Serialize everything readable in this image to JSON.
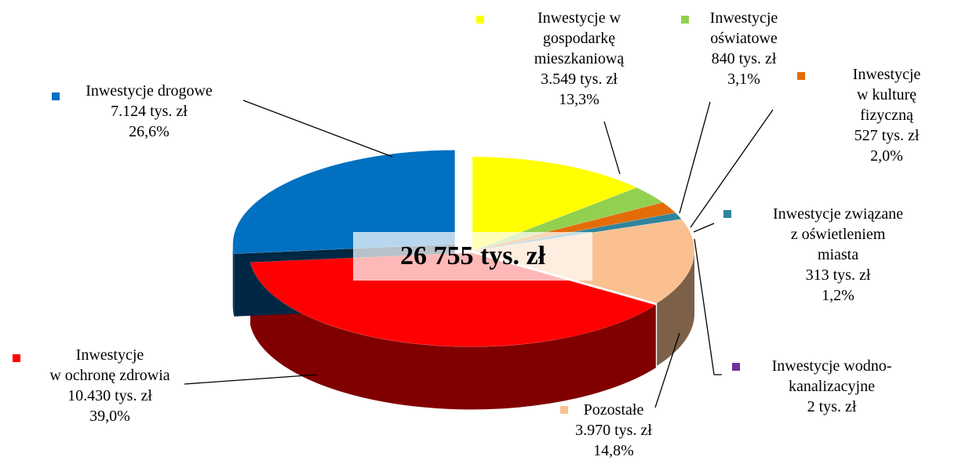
{
  "chart_data": {
    "type": "pie3d",
    "center_label": "26 755  tys. zł",
    "categories": [
      "Inwestycje w\ngospodarkę\nmieszkaniową",
      "Inwestycje\noświatowe",
      "Inwestycje\nw kulturę fizyczną",
      "Inwestycje związane\nz oświetleniem miasta",
      "Inwestycje wodno-\nkanalizacyjne",
      "Pozostałe",
      "Inwestycje\nw ochronę zdrowia",
      "Inwestycje drogowe"
    ],
    "values": [
      3549,
      840,
      527,
      313,
      2,
      3970,
      10430,
      7124
    ],
    "value_labels": [
      "3.549 tys. zł",
      "840 tys. zł",
      "527 tys. zł",
      "313 tys. zł",
      "2 tys. zł",
      "3.970 tys. zł",
      "10.430 tys. zł",
      "7.124 tys. zł"
    ],
    "percents": [
      13.3,
      3.1,
      2.0,
      1.2,
      null,
      14.8,
      39.0,
      26.6
    ],
    "percent_labels": [
      "13,3%",
      "3,1%",
      "2,0%",
      "1,2%",
      null,
      "14,8%",
      "39,0%",
      "26,6%"
    ],
    "colors": [
      "#ffff00",
      "#92d050",
      "#e36c09",
      "#31849b",
      "#7030a0",
      "#fac090",
      "#ff0000",
      "#0070c0"
    ]
  }
}
